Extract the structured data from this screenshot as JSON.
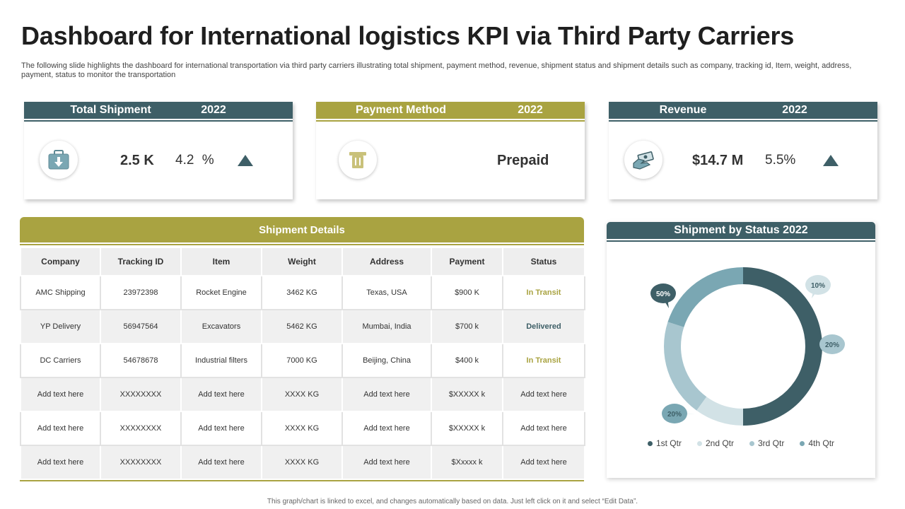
{
  "page": {
    "title": "Dashboard for International logistics KPI via Third Party Carriers",
    "subtitle": "The following slide highlights the dashboard for international transportation via third party carriers illustrating total shipment, payment method, revenue, shipment status and shipment details such as company, tracking id, Item, weight, address, payment, status to monitor the transportation",
    "footer": "This graph/chart is linked to excel, and changes automatically based on data. Just left click on it and select “Edit Data”."
  },
  "colors": {
    "teal": "#3e5f67",
    "olive": "#a9a341",
    "light_teal": "#d2e2e6",
    "mid_teal": "#a8c6cf",
    "slate_teal": "#7aa7b3"
  },
  "kpis": {
    "total_shipment": {
      "label": "Total Shipment",
      "year": "2022",
      "value": "2.5 K",
      "change": "4.2",
      "change_unit": "%",
      "trend": "up",
      "icon": "briefcase-download-icon"
    },
    "payment_method": {
      "label": "Payment Method",
      "year": "2022",
      "value": "Prepaid",
      "icon": "payment-terminal-icon"
    },
    "revenue": {
      "label": "Revenue",
      "year": "2022",
      "value": "$14.7 M",
      "change": "5.5%",
      "trend": "up",
      "icon": "hand-cash-icon"
    }
  },
  "shipment_details": {
    "title": "Shipment Details",
    "columns": [
      "Company",
      "Tracking ID",
      "Item",
      "Weight",
      "Address",
      "Payment",
      "Status"
    ],
    "rows": [
      [
        "AMC Shipping",
        "23972398",
        "Rocket Engine",
        "3462 KG",
        "Texas, USA",
        "$900 K",
        "In Transit"
      ],
      [
        "YP Delivery",
        "56947564",
        "Excavators",
        "5462 KG",
        "Mumbai,  India",
        "$700 k",
        "Delivered"
      ],
      [
        "DC Carriers",
        "54678678",
        "Industrial filters",
        "7000 KG",
        "Beijing,  China",
        "$400 k",
        "In Transit"
      ],
      [
        "Add text here",
        "XXXXXXXX",
        "Add text here",
        "XXXX  KG",
        "Add text here",
        "$XXXXX  k",
        "Add text here"
      ],
      [
        "Add text here",
        "XXXXXXXX",
        "Add text here",
        "XXXX  KG",
        "Add text here",
        "$XXXXX  k",
        "Add text here"
      ],
      [
        "Add text here",
        "XXXXXXXX",
        "Add text here",
        "XXXX  KG",
        "Add text here",
        "$Xxxxx k",
        "Add text here"
      ]
    ]
  },
  "chart_data": {
    "type": "pie",
    "variant": "donut",
    "title": "Shipment by Status  2022",
    "categories": [
      "1st Qtr",
      "2nd Qtr",
      "3rd Qtr",
      "4th Qtr"
    ],
    "values": [
      50,
      10,
      20,
      20
    ],
    "data_labels": [
      "50%",
      "10%",
      "20%",
      "20%"
    ],
    "colors": [
      "#3e5f67",
      "#d2e2e6",
      "#a8c6cf",
      "#7aa7b3"
    ],
    "legend_position": "bottom"
  }
}
